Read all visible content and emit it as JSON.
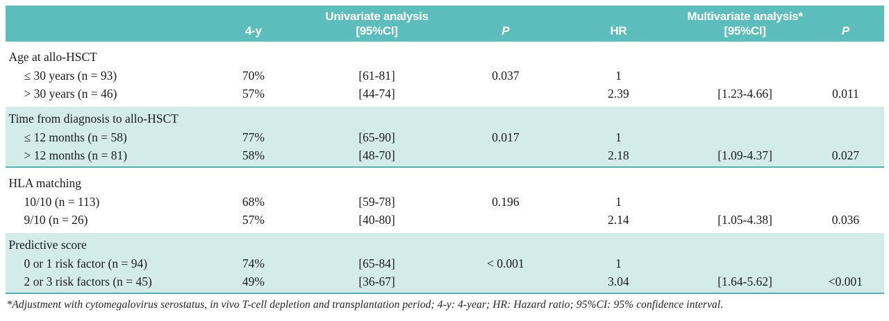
{
  "colors": {
    "header_bg": "#5cbdbd",
    "shaded_row_bg": "#d3ecea",
    "accent_line": "#4fb3b3"
  },
  "table": {
    "header": {
      "univariate_label": "Univariate analysis",
      "multivariate_label": "Multivariate analysis*",
      "col_4y": "4-y",
      "col_ci_uni": "[95%CI]",
      "col_p_uni": "P",
      "col_hr": "HR",
      "col_ci_multi": "[95%CI]",
      "col_p_multi": "P"
    },
    "groups": [
      {
        "label": "Age at allo-HSCT",
        "rows": [
          {
            "label": "≤ 30 years (n = 93)",
            "y4": "70%",
            "ci_uni": "[61-81]",
            "p_uni": "0.037",
            "hr": "1",
            "ci_multi": "",
            "p_multi": ""
          },
          {
            "label": "> 30 years (n = 46)",
            "y4": "57%",
            "ci_uni": "[44-74]",
            "p_uni": "",
            "hr": "2.39",
            "ci_multi": "[1.23-4.66]",
            "p_multi": "0.011"
          }
        ]
      },
      {
        "label": "Time from diagnosis to allo-HSCT",
        "rows": [
          {
            "label": "≤ 12 months (n = 58)",
            "y4": "77%",
            "ci_uni": "[65-90]",
            "p_uni": "0.017",
            "hr": "1",
            "ci_multi": "",
            "p_multi": ""
          },
          {
            "label": "> 12 months (n = 81)",
            "y4": "58%",
            "ci_uni": "[48-70]",
            "p_uni": "",
            "hr": "2.18",
            "ci_multi": "[1.09-4.37]",
            "p_multi": "0.027"
          }
        ]
      },
      {
        "label": "HLA matching",
        "rows": [
          {
            "label": "10/10 (n = 113)",
            "y4": "68%",
            "ci_uni": "[59-78]",
            "p_uni": "0.196",
            "hr": "1",
            "ci_multi": "",
            "p_multi": ""
          },
          {
            "label": "9/10 (n = 26)",
            "y4": "57%",
            "ci_uni": "[40-80]",
            "p_uni": "",
            "hr": "2.14",
            "ci_multi": "[1.05-4.38]",
            "p_multi": "0.036"
          }
        ]
      },
      {
        "label": "Predictive score",
        "rows": [
          {
            "label": "0 or 1 risk factor (n = 94)",
            "y4": "74%",
            "ci_uni": "[65-84]",
            "p_uni": "< 0.001",
            "hr": "1",
            "ci_multi": "",
            "p_multi": ""
          },
          {
            "label": "2 or 3 risk factors (n = 45)",
            "y4": "49%",
            "ci_uni": "[36-67]",
            "p_uni": "",
            "hr": "3.04",
            "ci_multi": "[1.64-5.62]",
            "p_multi": "<0.001"
          }
        ]
      }
    ],
    "footnote": "*Adjustment with cytomegalovirus serostatus, in vivo T-cell depletion and transplantation period; 4-y: 4-year; HR: Hazard ratio; 95%CI: 95% confidence interval."
  }
}
